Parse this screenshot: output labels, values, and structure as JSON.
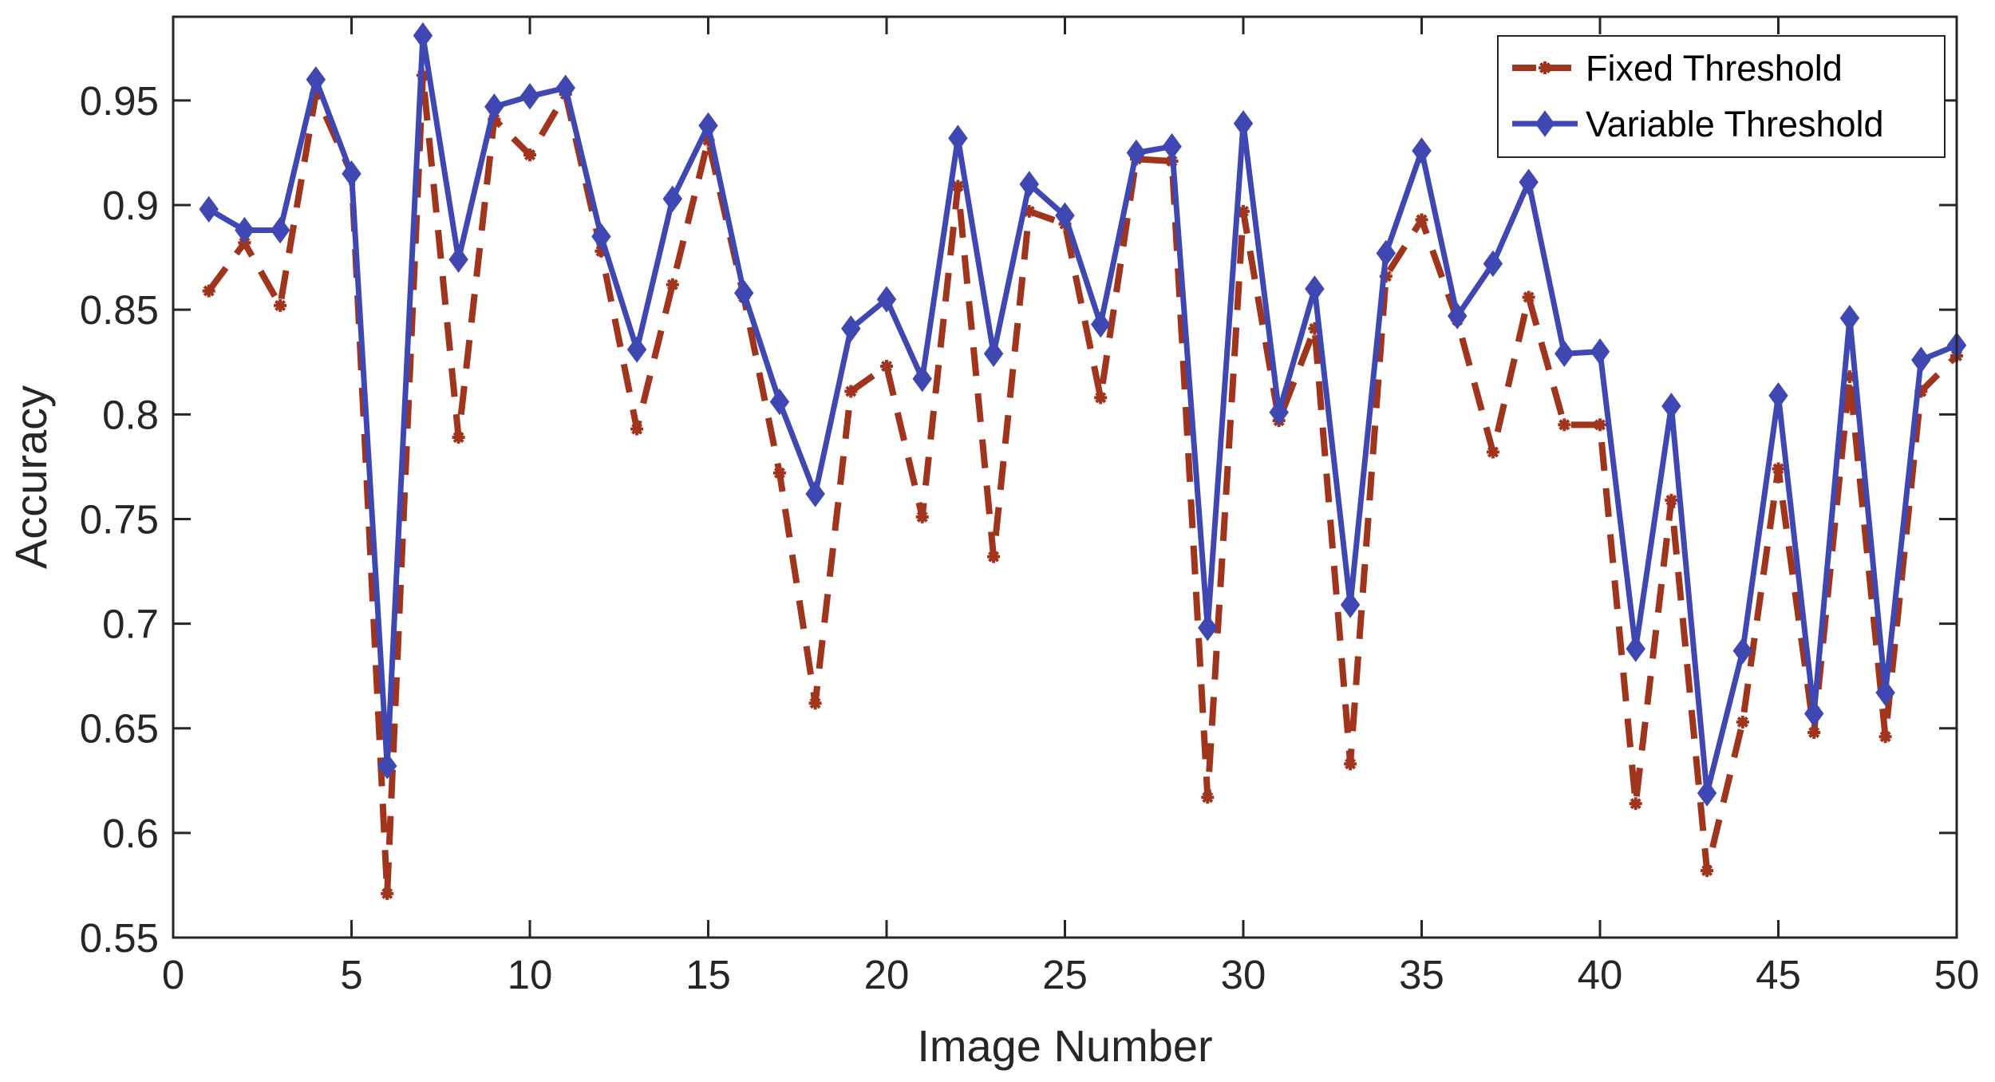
{
  "chart_data": {
    "type": "line",
    "xlabel": "Image Number",
    "ylabel": "Accuracy",
    "xlim": [
      0,
      50
    ],
    "ylim": [
      0.55,
      0.99
    ],
    "xticks": [
      0,
      5,
      10,
      15,
      20,
      25,
      30,
      35,
      40,
      45,
      50
    ],
    "xtick_labels": [
      "0",
      "5",
      "10",
      "15",
      "20",
      "25",
      "30",
      "35",
      "40",
      "45",
      "50"
    ],
    "yticks": [
      0.55,
      0.6,
      0.65,
      0.7,
      0.75,
      0.8,
      0.85,
      0.9,
      0.95
    ],
    "ytick_labels": [
      "0.55",
      "0.6",
      "0.65",
      "0.7",
      "0.75",
      "0.8",
      "0.85",
      "0.9",
      "0.95"
    ],
    "grid": false,
    "legend_position": "top-right",
    "x": [
      1,
      2,
      3,
      4,
      5,
      6,
      7,
      8,
      9,
      10,
      11,
      12,
      13,
      14,
      15,
      16,
      17,
      18,
      19,
      20,
      21,
      22,
      23,
      24,
      25,
      26,
      27,
      28,
      29,
      30,
      31,
      32,
      33,
      34,
      35,
      36,
      37,
      38,
      39,
      40,
      41,
      42,
      43,
      44,
      45,
      46,
      47,
      48,
      49,
      50
    ],
    "series": [
      {
        "name": "Fixed Threshold",
        "color": "#A0341C",
        "line_style": "dashed",
        "marker": "asterisk",
        "values": [
          0.859,
          0.882,
          0.852,
          0.953,
          0.915,
          0.571,
          0.962,
          0.789,
          0.941,
          0.924,
          0.953,
          0.878,
          0.793,
          0.862,
          0.931,
          0.856,
          0.772,
          0.662,
          0.811,
          0.823,
          0.751,
          0.909,
          0.732,
          0.897,
          0.891,
          0.808,
          0.922,
          0.921,
          0.617,
          0.897,
          0.797,
          0.841,
          0.633,
          0.866,
          0.893,
          0.845,
          0.782,
          0.856,
          0.795,
          0.795,
          0.614,
          0.759,
          0.582,
          0.653,
          0.774,
          0.648,
          0.818,
          0.646,
          0.811,
          0.828
        ]
      },
      {
        "name": "Variable Threshold",
        "color": "#3F48B2",
        "line_style": "solid",
        "marker": "diamond",
        "values": [
          0.898,
          0.888,
          0.888,
          0.96,
          0.915,
          0.632,
          0.981,
          0.874,
          0.947,
          0.952,
          0.956,
          0.885,
          0.831,
          0.903,
          0.938,
          0.858,
          0.806,
          0.762,
          0.841,
          0.855,
          0.817,
          0.932,
          0.829,
          0.91,
          0.895,
          0.843,
          0.925,
          0.928,
          0.698,
          0.939,
          0.801,
          0.86,
          0.709,
          0.877,
          0.926,
          0.847,
          0.872,
          0.911,
          0.829,
          0.83,
          0.688,
          0.804,
          0.619,
          0.687,
          0.809,
          0.657,
          0.846,
          0.667,
          0.826,
          0.833
        ]
      }
    ]
  }
}
